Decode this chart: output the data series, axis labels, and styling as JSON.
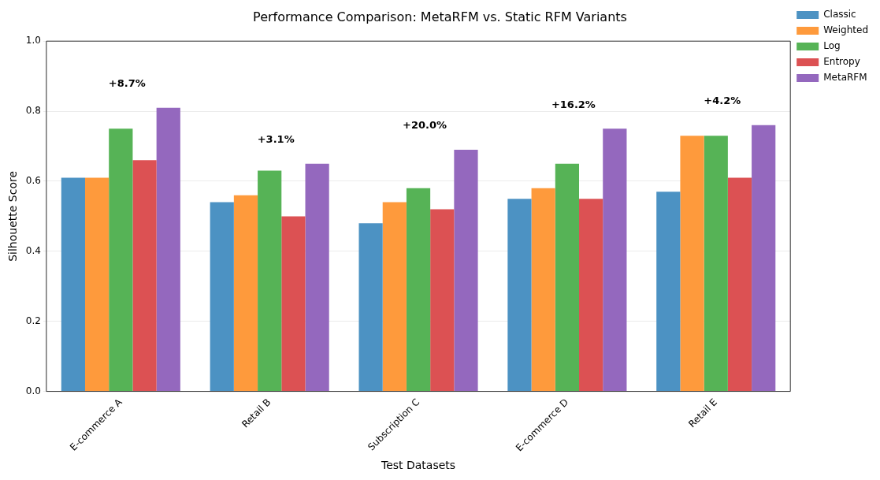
{
  "chart_data": {
    "type": "bar",
    "title": "Performance Comparison: MetaRFM vs. Static RFM Variants",
    "xlabel": "Test Datasets",
    "ylabel": "Silhouette Score",
    "categories": [
      "E-commerce A",
      "Retail B",
      "Subscription C",
      "E-commerce D",
      "Retail E"
    ],
    "series": [
      {
        "name": "Classic",
        "color": "#4c92c3",
        "values": [
          0.61,
          0.54,
          0.48,
          0.55,
          0.57
        ]
      },
      {
        "name": "Weighted",
        "color": "#fe9a3c",
        "values": [
          0.61,
          0.56,
          0.54,
          0.58,
          0.73
        ]
      },
      {
        "name": "Log",
        "color": "#56b356",
        "values": [
          0.75,
          0.63,
          0.58,
          0.65,
          0.73
        ]
      },
      {
        "name": "Entropy",
        "color": "#dc5153",
        "values": [
          0.66,
          0.5,
          0.52,
          0.55,
          0.61
        ]
      },
      {
        "name": "MetaRFM",
        "color": "#9468be",
        "values": [
          0.81,
          0.65,
          0.69,
          0.75,
          0.76
        ]
      }
    ],
    "ylim": [
      0,
      1
    ],
    "yticks": [
      {
        "value": 0,
        "label": "0.0"
      },
      {
        "value": 0.2,
        "label": "0.2"
      },
      {
        "value": 0.4,
        "label": "0.4"
      },
      {
        "value": 0.6,
        "label": "0.6"
      },
      {
        "value": 0.8,
        "label": "0.8"
      },
      {
        "value": 1,
        "label": "1.0"
      }
    ],
    "grid": "y",
    "legend": "top right",
    "annotations": [
      "+8.7%",
      "+3.1%",
      "+20.0%",
      "+16.2%",
      "+4.2%"
    ]
  }
}
